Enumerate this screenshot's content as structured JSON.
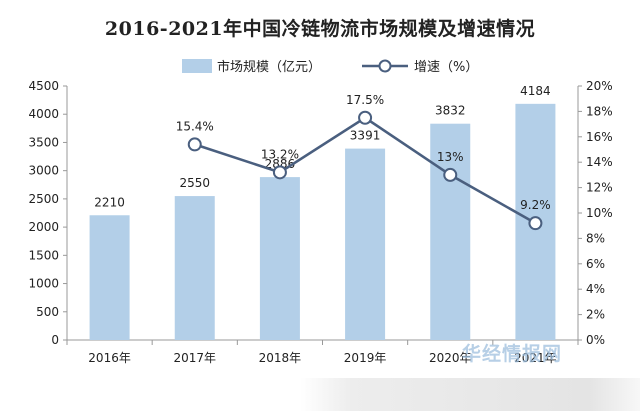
{
  "chart_data": {
    "type": "bar",
    "title": "2016-2021年中国冷链物流市场规模及增速情况",
    "categories": [
      "2016年",
      "2017年",
      "2018年",
      "2019年",
      "2020年",
      "2021年"
    ],
    "series": [
      {
        "name": "市场规模（亿元）",
        "type": "bar",
        "axis": "left",
        "values": [
          2210,
          2550,
          2886,
          3391,
          3832,
          4184
        ],
        "labels": [
          "2210",
          "2550",
          "2886",
          "3391",
          "3832",
          "4184"
        ]
      },
      {
        "name": "增速（%）",
        "type": "line",
        "axis": "right",
        "values": [
          null,
          15.4,
          13.2,
          17.5,
          13.0,
          9.2
        ],
        "labels": [
          "",
          "15.4%",
          "13.2%",
          "17.5%",
          "13%",
          "9.2%"
        ]
      }
    ],
    "ylim_left": [
      0,
      4500
    ],
    "yticks_left": [
      "0",
      "500",
      "1000",
      "1500",
      "2000",
      "2500",
      "3000",
      "3500",
      "4000",
      "4500"
    ],
    "ylim_right": [
      0,
      20
    ],
    "yticks_right": [
      "0%",
      "2%",
      "4%",
      "6%",
      "8%",
      "10%",
      "12%",
      "14%",
      "16%",
      "18%",
      "20%"
    ],
    "grid": false,
    "legend": "top-center",
    "colors": {
      "bar": "#b3cfe8",
      "line": "#4a5f7f",
      "marker_fill": "#ffffff"
    }
  },
  "watermark": "华经情报网"
}
